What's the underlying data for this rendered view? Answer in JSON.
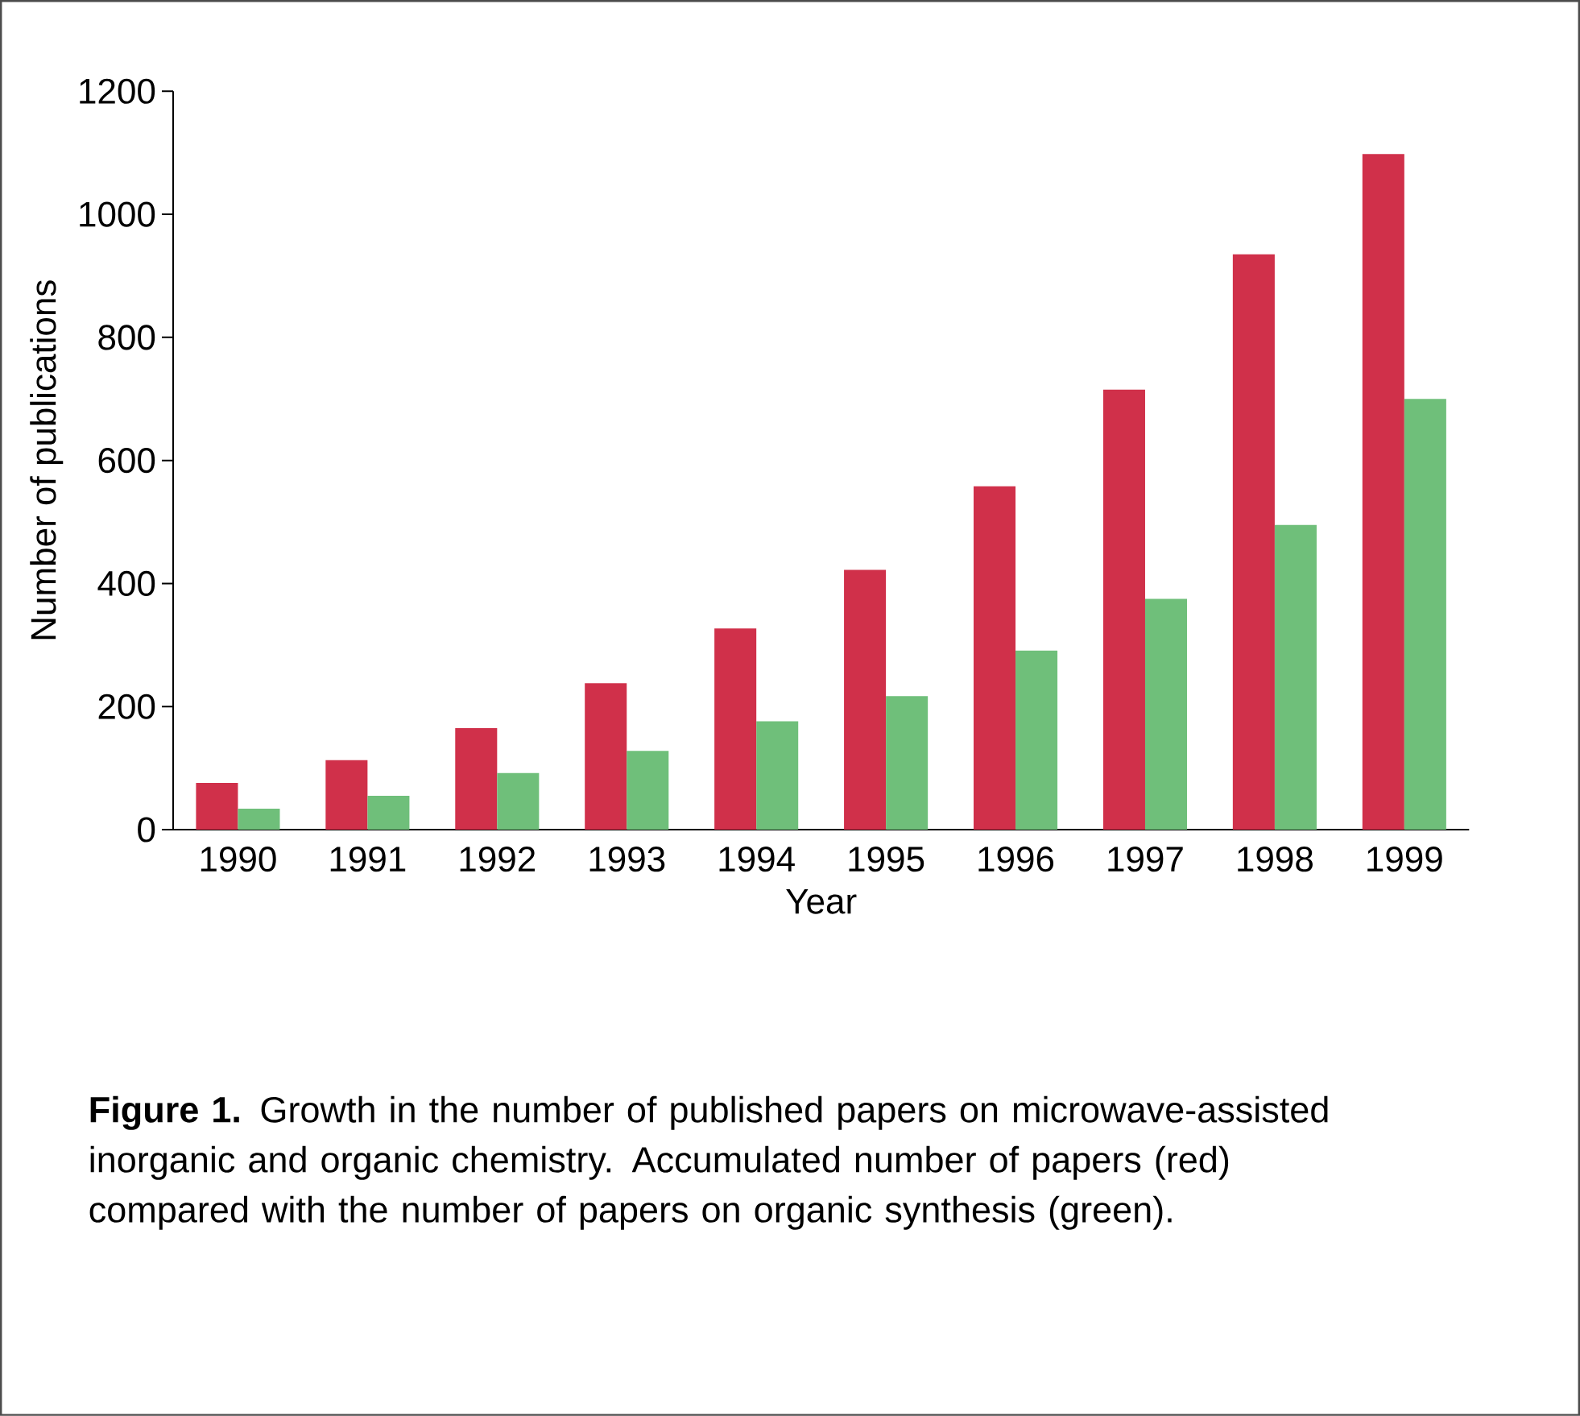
{
  "chart_data": {
    "type": "bar",
    "xlabel": "Year",
    "ylabel": "Number of publications",
    "categories": [
      "1990",
      "1991",
      "1992",
      "1993",
      "1994",
      "1995",
      "1996",
      "1997",
      "1998",
      "1999"
    ],
    "series": [
      {
        "color": "#d0304a",
        "values": [
          76,
          113,
          165,
          238,
          327,
          422,
          558,
          715,
          935,
          1098
        ]
      },
      {
        "color": "#6fbf7a",
        "values": [
          34,
          55,
          92,
          128,
          176,
          217,
          291,
          375,
          495,
          700
        ]
      }
    ],
    "ylim": [
      0,
      1200
    ],
    "yticks": [
      0,
      200,
      400,
      600,
      800,
      1000,
      1200
    ],
    "annotations": [
      "**Figure 1.** Growth in the number of published papers on microwave-assisted inorganic and organic chemistry. Accumulated number of papers (red) compared with the number of papers on organic synthesis (green)."
    ]
  }
}
